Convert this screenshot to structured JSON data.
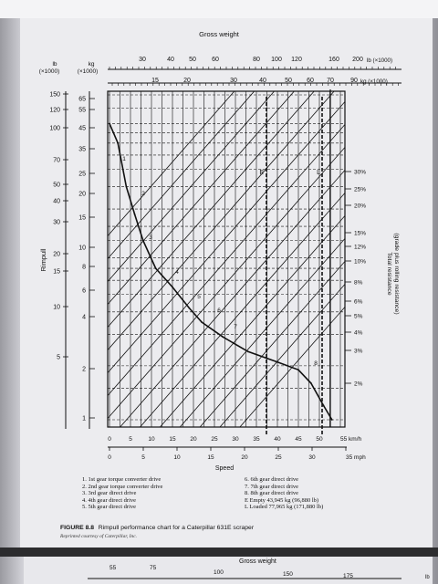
{
  "chart_data": {
    "type": "line",
    "title": "",
    "gross_weight_label": "Gross weight",
    "gross_weight_lb_ticks": [
      "30",
      "40",
      "50",
      "60",
      "80",
      "100",
      "120",
      "160",
      "200"
    ],
    "gross_weight_lb_unit": "lb (×1000)",
    "gross_weight_kg_ticks": [
      "15",
      "20",
      "30",
      "40",
      "50",
      "60",
      "70",
      "90"
    ],
    "gross_weight_kg_unit": "kg (×1000)",
    "rimpull_lb_header": [
      "lb",
      "(×1000)"
    ],
    "rimpull_kg_header": [
      "kg",
      "(×1000)"
    ],
    "ylabel": "Rimpull",
    "y_lb_ticks": [
      "150",
      "120",
      "100",
      "70",
      "50",
      "40",
      "30",
      "20",
      "15",
      "10",
      "5"
    ],
    "y_kg_ticks": [
      "65",
      "55",
      "45",
      "35",
      "25",
      "20",
      "15",
      "10",
      "8",
      "6",
      "4",
      "2",
      "1"
    ],
    "xlabel": "Speed",
    "x_kmh_ticks": [
      "0",
      "5",
      "10",
      "15",
      "20",
      "25",
      "30",
      "35",
      "40",
      "45",
      "50",
      "55 km/h"
    ],
    "x_mph_ticks": [
      "0",
      "5",
      "10",
      "15",
      "20",
      "25",
      "30",
      "35 mph"
    ],
    "resistance_label": [
      "Total resistance",
      "(grade plus rolling resistance)"
    ],
    "resistance_ticks": [
      "30%",
      "25%",
      "20%",
      "15%",
      "12%",
      "10%",
      "8%",
      "6%",
      "5%",
      "4%",
      "3%",
      "2%"
    ],
    "curve_markers": [
      "1",
      "2",
      "3",
      "4",
      "5",
      "6",
      "7",
      "8"
    ],
    "weight_markers": [
      "E",
      "L"
    ],
    "rimpull_curve": [
      {
        "speed_kmh": 0,
        "rimpull_kg_x1000": 45
      },
      {
        "speed_kmh": 2,
        "rimpull_kg_x1000": 35
      },
      {
        "speed_kmh": 4,
        "rimpull_kg_x1000": 20
      },
      {
        "speed_kmh": 6,
        "rimpull_kg_x1000": 14
      },
      {
        "speed_kmh": 8,
        "rimpull_kg_x1000": 10
      },
      {
        "speed_kmh": 11,
        "rimpull_kg_x1000": 7
      },
      {
        "speed_kmh": 15,
        "rimpull_kg_x1000": 5.5
      },
      {
        "speed_kmh": 19,
        "rimpull_kg_x1000": 4.2
      },
      {
        "speed_kmh": 22,
        "rimpull_kg_x1000": 3.5
      },
      {
        "speed_kmh": 27,
        "rimpull_kg_x1000": 2.9
      },
      {
        "speed_kmh": 33,
        "rimpull_kg_x1000": 2.4
      },
      {
        "speed_kmh": 40,
        "rimpull_kg_x1000": 2.1
      },
      {
        "speed_kmh": 45,
        "rimpull_kg_x1000": 1.9
      },
      {
        "speed_kmh": 48,
        "rimpull_kg_x1000": 1.6
      },
      {
        "speed_kmh": 51,
        "rimpull_kg_x1000": 1.2
      },
      {
        "speed_kmh": 53,
        "rimpull_kg_x1000": 1.0
      }
    ],
    "grid": true
  },
  "legend_left": [
    "1. 1st gear torque converter drive",
    "2. 2nd gear torque converter drive",
    "3. 3rd gear direct drive",
    "4. 4th gear direct drive",
    "5. 5th gear direct drive"
  ],
  "legend_right": [
    "6. 6th gear direct drive",
    "7. 7th gear direct drive",
    "8. 8th gear direct drive",
    "E  Empty 43,945 kg (96,880 lb)",
    "L  Loaded 77,965 kg (171,880 lb)"
  ],
  "figure_label": "FIGURE 8.8",
  "figure_caption": "Rimpull performance chart for a Caterpillar 631E scraper",
  "figure_credit": "Reprinted courtesy of Caterpillar, Inc.",
  "next_page": {
    "title": "Gross weight",
    "ticks": [
      "55",
      "75",
      "100",
      "150",
      "175"
    ],
    "unit": "lb"
  },
  "colors": {
    "ink": "#111111",
    "paper": "#ececef",
    "border": "#3a3a3c"
  }
}
